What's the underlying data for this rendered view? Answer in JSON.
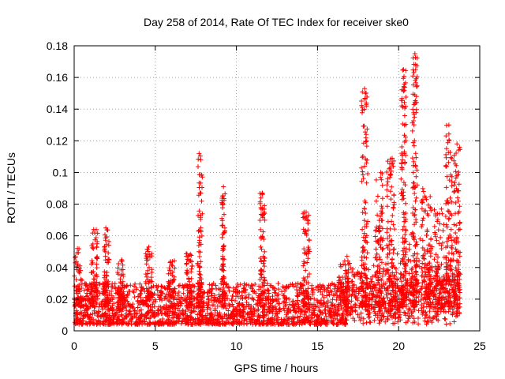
{
  "chart_data": {
    "type": "scatter",
    "title": "Day 258 of 2014, Rate Of TEC Index for receiver ske0",
    "xlabel": "GPS time / hours",
    "ylabel": "ROTI / TECUs",
    "xlim": [
      0,
      25
    ],
    "ylim": [
      0,
      0.18
    ],
    "x_ticks": [
      0,
      5,
      10,
      15,
      20,
      25
    ],
    "x_tick_labels": [
      "0",
      "5",
      "10",
      "15",
      "20",
      "25"
    ],
    "y_ticks": [
      0,
      0.02,
      0.04,
      0.06,
      0.08,
      0.1,
      0.12,
      0.14,
      0.16,
      0.18
    ],
    "y_tick_labels": [
      "0",
      "0.02",
      "0.04",
      "0.06",
      "0.08",
      "0.1",
      "0.12",
      "0.14",
      "0.16",
      "0.18"
    ],
    "grid": true,
    "marker": "+",
    "marker_color": "#ff0000",
    "series": [
      {
        "name": "ROTI",
        "note": "Dense cloud of ~14000 points spanning 0-24 h; baseline 0.005-0.03 TECU with spikes",
        "baseline": {
          "x_range": [
            0,
            23.8
          ],
          "y_range": [
            0.004,
            0.03
          ]
        },
        "bursts": [
          {
            "x": 0.25,
            "peak": 0.052,
            "width": 0.25
          },
          {
            "x": 1.25,
            "peak": 0.064,
            "width": 0.2
          },
          {
            "x": 2.0,
            "peak": 0.065,
            "width": 0.15
          },
          {
            "x": 2.85,
            "peak": 0.045,
            "width": 0.2
          },
          {
            "x": 4.6,
            "peak": 0.053,
            "width": 0.2
          },
          {
            "x": 6.0,
            "peak": 0.045,
            "width": 0.2
          },
          {
            "x": 7.1,
            "peak": 0.05,
            "width": 0.2
          },
          {
            "x": 7.75,
            "peak": 0.112,
            "width": 0.15
          },
          {
            "x": 9.2,
            "peak": 0.091,
            "width": 0.1
          },
          {
            "x": 11.6,
            "peak": 0.087,
            "width": 0.15
          },
          {
            "x": 14.3,
            "peak": 0.075,
            "width": 0.2
          },
          {
            "x": 16.6,
            "peak": 0.045,
            "width": 0.3
          },
          {
            "x": 17.9,
            "peak": 0.153,
            "width": 0.2
          },
          {
            "x": 18.8,
            "peak": 0.1,
            "width": 0.25
          },
          {
            "x": 19.5,
            "peak": 0.109,
            "width": 0.25
          },
          {
            "x": 20.3,
            "peak": 0.165,
            "width": 0.15
          },
          {
            "x": 21.0,
            "peak": 0.175,
            "width": 0.15
          },
          {
            "x": 21.7,
            "peak": 0.09,
            "width": 0.3
          },
          {
            "x": 22.5,
            "peak": 0.08,
            "width": 0.3
          },
          {
            "x": 23.1,
            "peak": 0.13,
            "width": 0.2
          },
          {
            "x": 23.6,
            "peak": 0.118,
            "width": 0.2
          }
        ],
        "points": [
          [
            0.2,
            0.052
          ],
          [
            1.2,
            0.064
          ],
          [
            1.95,
            0.065
          ],
          [
            2.9,
            0.044
          ],
          [
            4.6,
            0.053
          ],
          [
            7.7,
            0.112
          ],
          [
            7.8,
            0.108
          ],
          [
            9.2,
            0.091
          ],
          [
            11.6,
            0.087
          ],
          [
            14.3,
            0.075
          ],
          [
            17.9,
            0.153
          ],
          [
            17.95,
            0.15
          ],
          [
            18.0,
            0.143
          ],
          [
            18.9,
            0.1
          ],
          [
            19.6,
            0.109
          ],
          [
            20.3,
            0.165
          ],
          [
            20.35,
            0.152
          ],
          [
            21.0,
            0.175
          ],
          [
            21.05,
            0.165
          ],
          [
            21.1,
            0.148
          ],
          [
            23.1,
            0.13
          ],
          [
            23.6,
            0.118
          ]
        ]
      }
    ]
  }
}
